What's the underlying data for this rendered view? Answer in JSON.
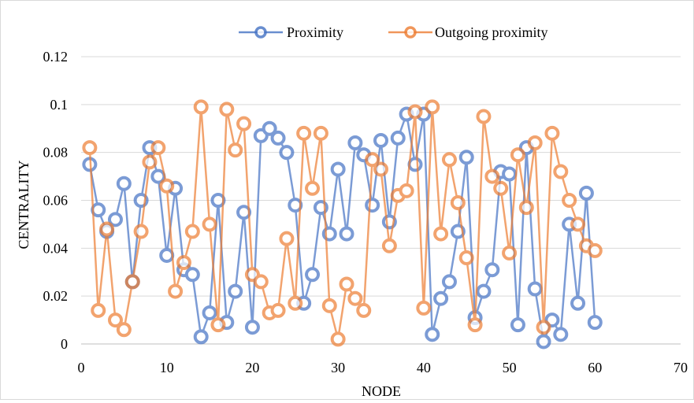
{
  "chart_data": {
    "type": "line",
    "title": "",
    "xlabel": "NODE",
    "ylabel": "CENTRALITY",
    "xlim": [
      0,
      70
    ],
    "ylim": [
      0,
      0.12
    ],
    "x_ticks": [
      "0",
      "10",
      "20",
      "30",
      "40",
      "50",
      "60",
      "70"
    ],
    "y_ticks": [
      "0",
      "0.02",
      "0.04",
      "0.06",
      "0.08",
      "0.1",
      "0.12"
    ],
    "grid": "horizontal",
    "legend_position": "top",
    "x": [
      1,
      2,
      3,
      4,
      5,
      6,
      7,
      8,
      9,
      10,
      11,
      12,
      13,
      14,
      15,
      16,
      17,
      18,
      19,
      20,
      21,
      22,
      23,
      24,
      25,
      26,
      27,
      28,
      29,
      30,
      31,
      32,
      33,
      34,
      35,
      36,
      37,
      38,
      39,
      40,
      41,
      42,
      43,
      44,
      45,
      46,
      47,
      48,
      49,
      50,
      51,
      52,
      53,
      54,
      55,
      56,
      57,
      58,
      59,
      60
    ],
    "series": [
      {
        "name": "Proximity",
        "color": "#4472c4",
        "values": [
          0.075,
          0.056,
          0.047,
          0.052,
          0.067,
          0.026,
          0.06,
          0.082,
          0.07,
          0.037,
          0.065,
          0.031,
          0.029,
          0.003,
          0.013,
          0.06,
          0.009,
          0.022,
          0.055,
          0.007,
          0.087,
          0.09,
          0.086,
          0.08,
          0.058,
          0.017,
          0.029,
          0.057,
          0.046,
          0.073,
          0.046,
          0.084,
          0.079,
          0.058,
          0.085,
          0.051,
          0.086,
          0.096,
          0.075,
          0.096,
          0.004,
          0.019,
          0.026,
          0.047,
          0.078,
          0.011,
          0.022,
          0.031,
          0.072,
          0.071,
          0.008,
          0.082,
          0.023,
          0.001,
          0.01,
          0.004,
          0.05,
          0.017,
          0.063,
          0.009
        ]
      },
      {
        "name": "Outgoing proximity",
        "color": "#ed7d31",
        "values": [
          0.082,
          0.014,
          0.048,
          0.01,
          0.006,
          0.026,
          0.047,
          0.076,
          0.082,
          0.066,
          0.022,
          0.034,
          0.047,
          0.099,
          0.05,
          0.008,
          0.098,
          0.081,
          0.092,
          0.029,
          0.026,
          0.013,
          0.014,
          0.044,
          0.017,
          0.088,
          0.065,
          0.088,
          0.016,
          0.002,
          0.025,
          0.019,
          0.014,
          0.077,
          0.073,
          0.041,
          0.062,
          0.064,
          0.097,
          0.015,
          0.099,
          0.046,
          0.077,
          0.059,
          0.036,
          0.008,
          0.095,
          0.07,
          0.065,
          0.038,
          0.079,
          0.057,
          0.084,
          0.007,
          0.088,
          0.072,
          0.06,
          0.05,
          0.041,
          0.039
        ]
      }
    ]
  }
}
